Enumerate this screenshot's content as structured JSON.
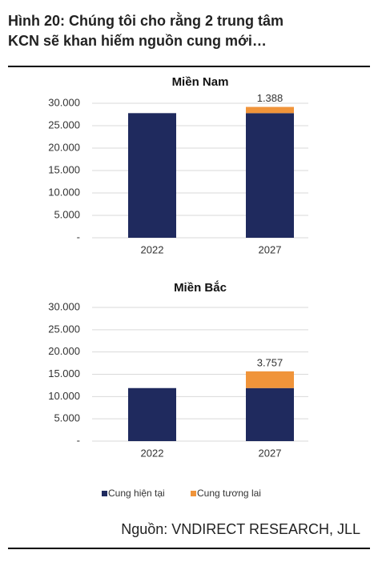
{
  "header": {
    "title_lines": [
      "Hình 20: Chúng tôi cho rằng 2 trung tâm",
      "KCN sẽ khan hiếm nguồn cung mới…"
    ]
  },
  "legend": [
    {
      "name": "Cung hiện tại",
      "color": "#1f2a5e"
    },
    {
      "name": "Cung tương lai",
      "color": "#f0943a"
    }
  ],
  "chart_data": [
    {
      "type": "stacked_bar",
      "title": "Miền Nam",
      "categories": [
        "2022",
        "2027"
      ],
      "series": [
        {
          "values": [
            27800,
            27800
          ]
        },
        {
          "values": [
            null,
            1388
          ],
          "value_labels": [
            null,
            "1.388"
          ]
        }
      ],
      "ylim": [
        0,
        30000
      ],
      "yticks": [
        {
          "value": 0,
          "label": "-"
        },
        {
          "value": 5000,
          "label": "5.000"
        },
        {
          "value": 10000,
          "label": "10.000"
        },
        {
          "value": 15000,
          "label": "15.000"
        },
        {
          "value": 20000,
          "label": "20.000"
        },
        {
          "value": 25000,
          "label": "25.000"
        },
        {
          "value": 30000,
          "label": "30.000"
        }
      ],
      "grid": true
    },
    {
      "type": "stacked_bar",
      "title": "Miền Bắc",
      "categories": [
        "2022",
        "2027"
      ],
      "series": [
        {
          "values": [
            11900,
            11900
          ]
        },
        {
          "values": [
            null,
            3757
          ],
          "value_labels": [
            null,
            "3.757"
          ]
        }
      ],
      "ylim": [
        0,
        30000
      ],
      "yticks": [
        {
          "value": 0,
          "label": "-"
        },
        {
          "value": 5000,
          "label": "5.000"
        },
        {
          "value": 10000,
          "label": "10.000"
        },
        {
          "value": 15000,
          "label": "15.000"
        },
        {
          "value": 20000,
          "label": "20.000"
        },
        {
          "value": 25000,
          "label": "25.000"
        },
        {
          "value": 30000,
          "label": "30.000"
        }
      ],
      "grid": true
    }
  ],
  "source": "Nguồn: VNDIRECT RESEARCH, JLL"
}
